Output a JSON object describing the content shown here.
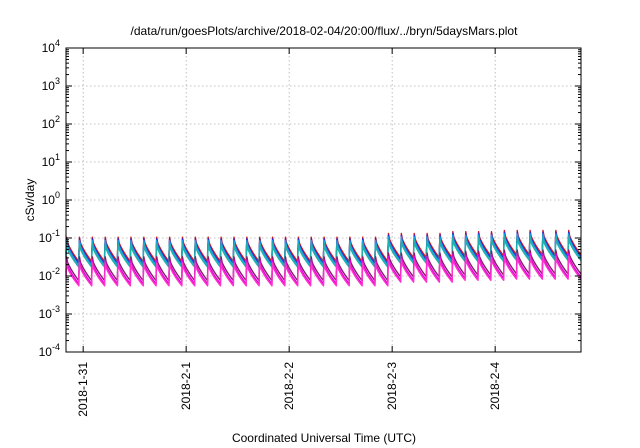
{
  "chart_data": {
    "type": "line",
    "title": "/data/run/goesPlots/archive/2018-02-04/20:00/flux/../bryn/5daysMars.plot",
    "xlabel": "Coordinated Universal Time (UTC)",
    "ylabel": "cSv/day",
    "yscale": "log",
    "ylim": [
      0.0001,
      10000
    ],
    "yticks": [
      {
        "base": "10",
        "exp": "-4"
      },
      {
        "base": "10",
        "exp": "-3"
      },
      {
        "base": "10",
        "exp": "-2"
      },
      {
        "base": "10",
        "exp": "-1"
      },
      {
        "base": "10",
        "exp": "0"
      },
      {
        "base": "10",
        "exp": "1"
      },
      {
        "base": "10",
        "exp": "2"
      },
      {
        "base": "10",
        "exp": "3"
      },
      {
        "base": "10",
        "exp": "4"
      }
    ],
    "xlim": [
      "2018-01-30T20:00",
      "2018-02-04T20:00"
    ],
    "xticks": [
      "2018-1-31",
      "2018-2-1",
      "2018-2-2",
      "2018-2-3",
      "2018-2-4"
    ],
    "grid": true,
    "legend": "none",
    "pattern": {
      "period_hours": 3,
      "segments": [
        {
          "start": "2018-01-30T20:00",
          "end": "2018-02-02T21:00",
          "scale": 1.0
        },
        {
          "start": "2018-02-02T21:00",
          "end": "2018-02-03T12:00",
          "scale": 1.25
        },
        {
          "start": "2018-02-03T12:00",
          "end": "2018-02-04T00:00",
          "scale": 1.4
        },
        {
          "start": "2018-02-04T00:00",
          "end": "2018-02-04T20:00",
          "scale": 1.5
        }
      ]
    },
    "series": [
      {
        "color": "#d7191c",
        "peak": 0.105,
        "trough": 0.024
      },
      {
        "color": "#2b2bd0",
        "peak": 0.095,
        "trough": 0.021
      },
      {
        "color": "#1a9fe0",
        "peak": 0.085,
        "trough": 0.019
      },
      {
        "color": "#20b2aa",
        "peak": 0.07,
        "trough": 0.017
      },
      {
        "color": "#8b1a6b",
        "peak": 0.032,
        "trough": 0.0075
      },
      {
        "color": "#e000e0",
        "peak": 0.026,
        "trough": 0.0062
      },
      {
        "color": "#ff33cc",
        "peak": 0.022,
        "trough": 0.0055
      }
    ]
  }
}
